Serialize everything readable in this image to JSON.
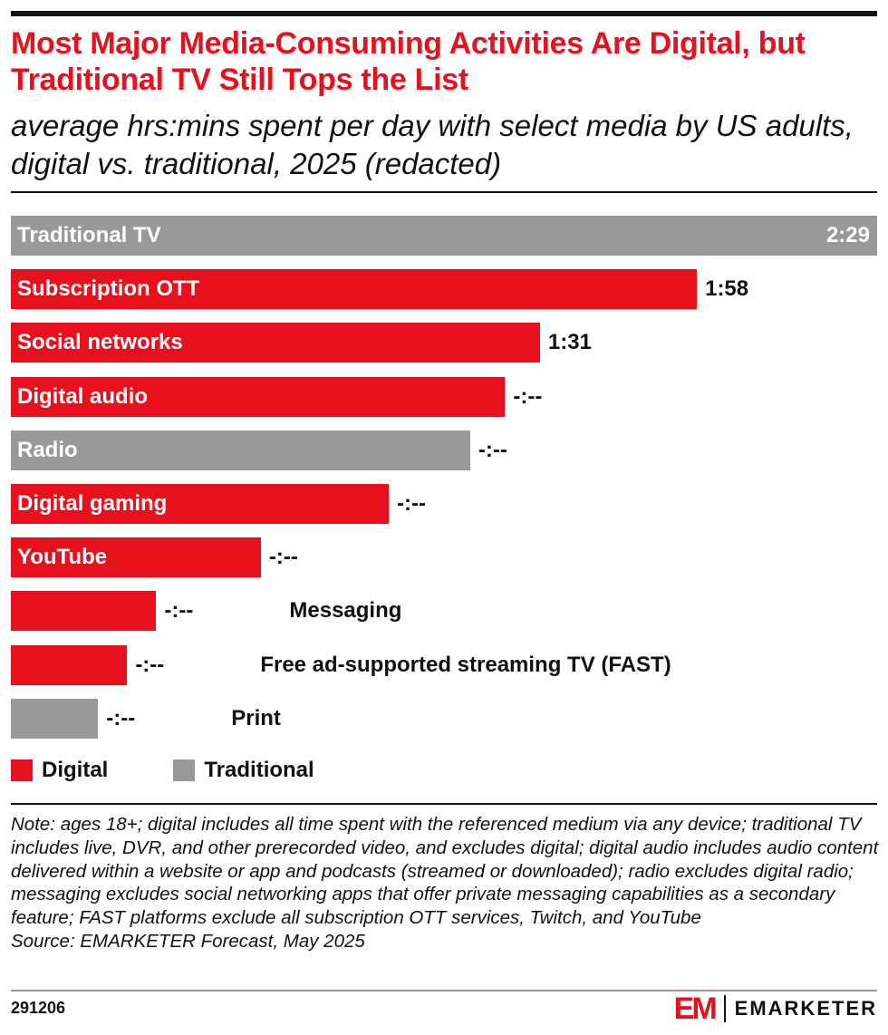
{
  "title": "Most Major Media-Consuming Activities Are Digital, but Traditional TV Still Tops the List",
  "subtitle": "average hrs:mins spent per day with select media by US adults, digital vs. traditional, 2025 (redacted)",
  "colors": {
    "Digital": "#e8101d",
    "Traditional": "#999999"
  },
  "chart_data": {
    "type": "bar",
    "orientation": "horizontal",
    "categories": [
      "Traditional TV",
      "Subscription OTT",
      "Social networks",
      "Digital audio",
      "Radio",
      "Digital gaming",
      "YouTube",
      "Messaging",
      "Free ad-supported streaming TV (FAST)",
      "Print"
    ],
    "groups": [
      "Traditional",
      "Digital",
      "Digital",
      "Digital",
      "Traditional",
      "Digital",
      "Digital",
      "Digital",
      "Digital",
      "Traditional"
    ],
    "values_minutes": [
      149,
      118,
      91,
      85,
      79,
      65,
      43,
      25,
      20,
      15
    ],
    "data_labels": [
      "2:29",
      "1:58",
      "1:31",
      "-:--",
      "-:--",
      "-:--",
      "-:--",
      "-:--",
      "-:--",
      "-:--"
    ],
    "legend": [
      "Digital",
      "Traditional"
    ],
    "legend_position": "bottom-left",
    "grid": false,
    "xlim": [
      0,
      149
    ]
  },
  "note": "Note: ages 18+; digital includes all time spent with the referenced medium via any device; traditional TV includes live, DVR, and other prerecorded video, and excludes digital; digital audio includes audio content delivered within a website or app and podcasts (streamed or downloaded); radio excludes digital radio; messaging excludes social networking apps that offer private messaging capabilities as a secondary feature; FAST platforms exclude all subscription OTT services, Twitch, and YouTube",
  "source": "Source: EMARKETER Forecast, May 2025",
  "footer": {
    "id": "291206",
    "logo_mark": "EM",
    "logo_text": "EMARKETER"
  }
}
